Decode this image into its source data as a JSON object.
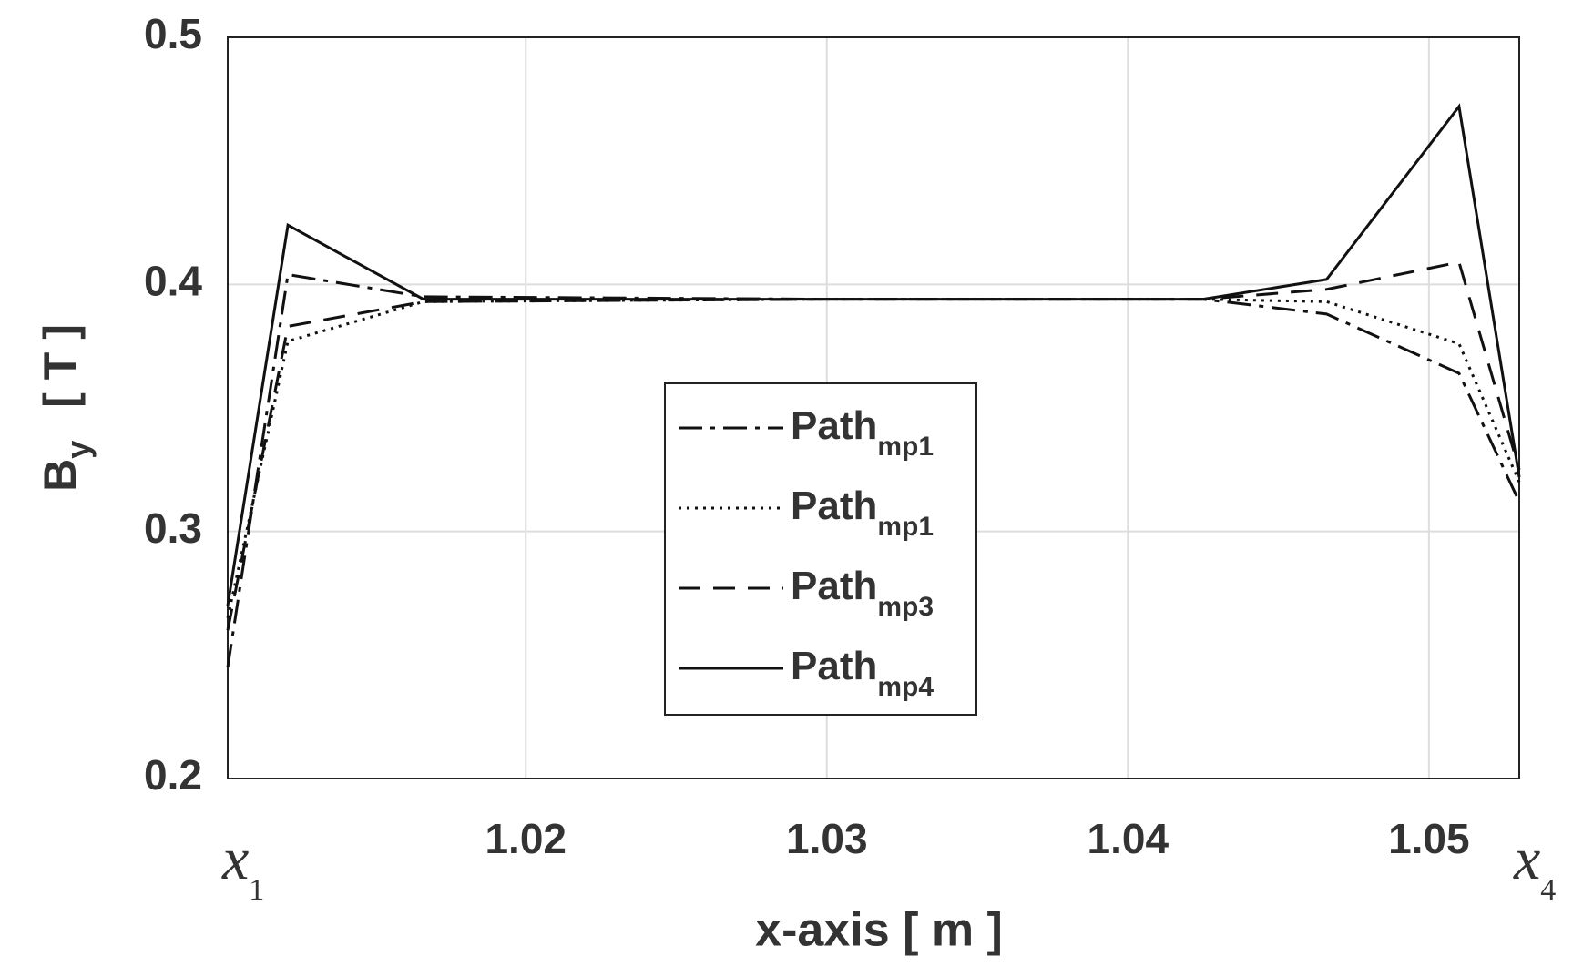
{
  "chart_data": {
    "type": "line",
    "ylabel": "B",
    "ylabel_subscript": "y",
    "ylabel_unit": "[ T ]",
    "xlabel": "x-axis [ m ]",
    "annotations": [
      {
        "text": "x",
        "subscript": "1",
        "x": 1.0101
      },
      {
        "text": "x",
        "subscript": "4",
        "x": 1.053
      }
    ],
    "x": [
      1.0101,
      1.0121,
      1.0166,
      1.03,
      1.0425,
      1.0466,
      1.051,
      1.053
    ],
    "series": [
      {
        "name": "Path",
        "subscript": "mp1",
        "color": "#111111",
        "dash": "dashdot",
        "values": [
          0.245,
          0.404,
          0.395,
          0.394,
          0.394,
          0.388,
          0.364,
          0.312
        ]
      },
      {
        "name": "Path",
        "subscript": "mp1",
        "color": "#111111",
        "dash": "dotted",
        "values": [
          0.265,
          0.377,
          0.393,
          0.394,
          0.394,
          0.393,
          0.376,
          0.32
        ]
      },
      {
        "name": "Path",
        "subscript": "mp3",
        "color": "#111111",
        "dash": "dashed",
        "values": [
          0.26,
          0.383,
          0.393,
          0.394,
          0.394,
          0.398,
          0.409,
          0.325
        ]
      },
      {
        "name": "Path",
        "subscript": "mp4",
        "color": "#111111",
        "dash": "solid",
        "values": [
          0.27,
          0.424,
          0.394,
          0.394,
          0.394,
          0.402,
          0.472,
          0.322
        ]
      }
    ],
    "xlim": [
      1.0101,
      1.053
    ],
    "xticks": [
      1.02,
      1.03,
      1.04,
      1.05
    ],
    "ylim": [
      0.2,
      0.5
    ],
    "yticks": [
      0.2,
      0.3,
      0.4,
      0.5
    ],
    "grid": true
  }
}
